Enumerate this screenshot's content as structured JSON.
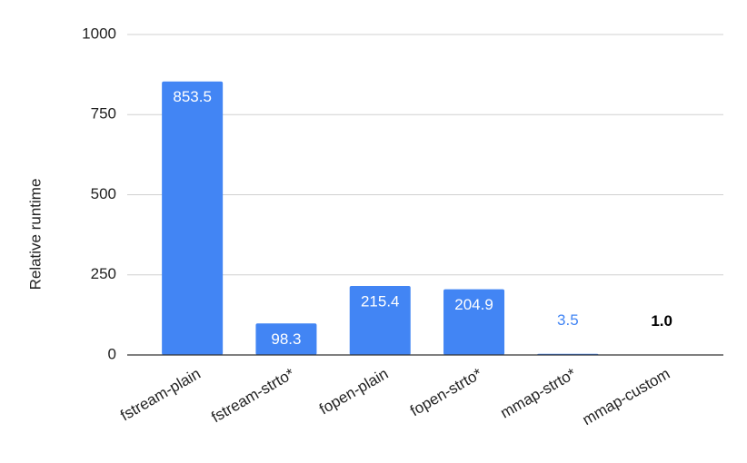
{
  "chart_data": {
    "type": "bar",
    "y_label": "Relative runtime",
    "categories": [
      "fstream-plain",
      "fstream-strto*",
      "fopen-plain",
      "fopen-strto*",
      "mmap-strto*",
      "mmap-custom"
    ],
    "values": [
      853.5,
      98.3,
      215.4,
      204.9,
      3.5,
      1.0
    ],
    "value_labels": [
      "853.5",
      "98.3",
      "215.4",
      "204.9",
      "3.5",
      "1.0"
    ],
    "color": "#4285f4",
    "ylim": [
      0,
      1000
    ],
    "yticks": [
      0,
      250,
      500,
      750,
      1000
    ],
    "grid": true
  }
}
